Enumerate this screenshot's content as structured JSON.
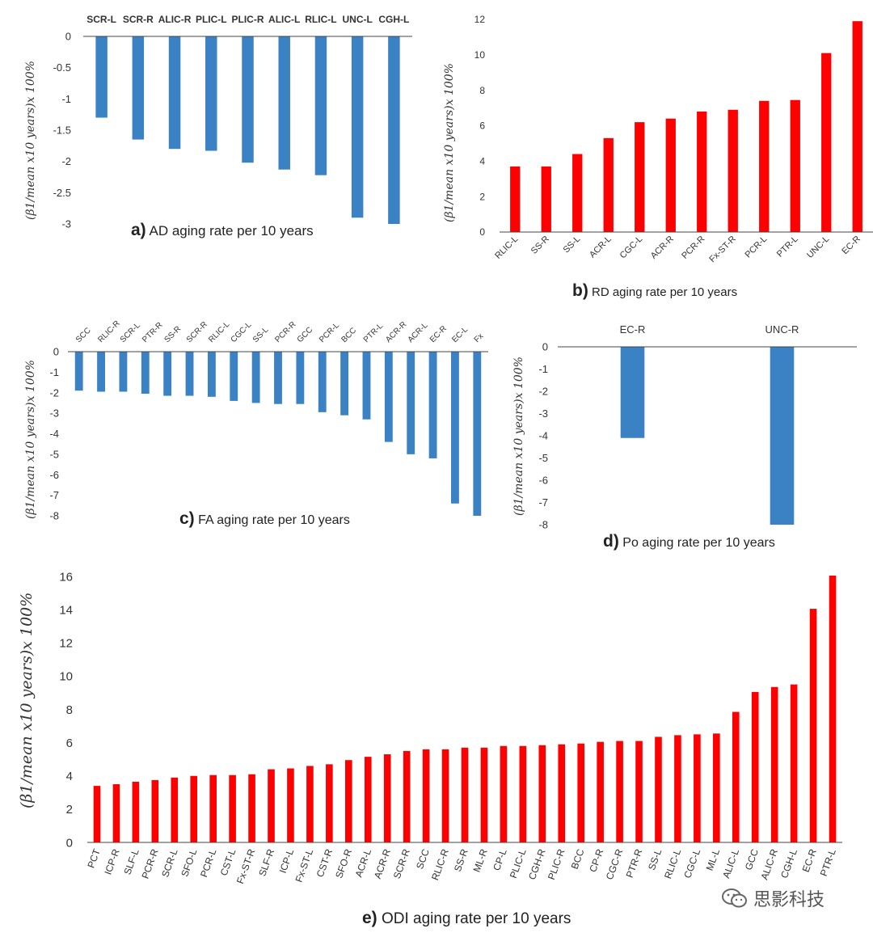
{
  "chart_data": [
    {
      "id": "a",
      "type": "bar",
      "title_letter": "a)",
      "title": "AD aging rate per 10 years",
      "ylabel": "(β1/mean x10 years)x 100%",
      "categories": [
        "SCR-L",
        "SCR-R",
        "ALIC-R",
        "PLIC-L",
        "PLIC-R",
        "ALIC-L",
        "RLIC-L",
        "UNC-L",
        "CGH-L"
      ],
      "values": [
        -1.3,
        -1.65,
        -1.8,
        -1.83,
        -2.02,
        -2.13,
        -2.22,
        -2.9,
        -3.0
      ],
      "ylim": [
        -3,
        0
      ],
      "yticks": [
        0,
        -0.5,
        -1,
        -1.5,
        -2,
        -2.5,
        -3
      ],
      "color": "#3b82c4"
    },
    {
      "id": "b",
      "type": "bar",
      "title_letter": "b)",
      "title": "RD aging rate per 10 years",
      "ylabel": "(β1/mean x10 years)x 100%",
      "categories": [
        "RLIC-L",
        "SS-R",
        "SS-L",
        "ACR-L",
        "CGC-L",
        "ACR-R",
        "PCR-R",
        "Fx-ST-R",
        "PCR-L",
        "PTR-L",
        "UNC-L",
        "EC-R"
      ],
      "values": [
        3.7,
        3.7,
        4.4,
        5.3,
        6.2,
        6.4,
        6.8,
        6.9,
        7.4,
        7.45,
        10.1,
        11.9
      ],
      "ylim": [
        0,
        12
      ],
      "yticks": [
        0,
        2,
        4,
        6,
        8,
        10,
        12
      ],
      "color": "#ff0000"
    },
    {
      "id": "c",
      "type": "bar",
      "title_letter": "c)",
      "title": "FA aging rate per 10 years",
      "ylabel": "(β1/mean x10 years)x 100%",
      "categories": [
        "SCC",
        "RLIC-R",
        "SCR-L",
        "PTR-R",
        "SS-R",
        "SCR-R",
        "RLIC-L",
        "CGC-L",
        "SS-L",
        "PCR-R",
        "GCC",
        "PCR-L",
        "BCC",
        "PTR-L",
        "ACR-R",
        "ACR-L",
        "EC-R",
        "EC-L",
        "Fx"
      ],
      "values": [
        -1.9,
        -1.95,
        -1.95,
        -2.05,
        -2.15,
        -2.15,
        -2.2,
        -2.4,
        -2.5,
        -2.55,
        -2.55,
        -2.95,
        -3.1,
        -3.3,
        -4.4,
        -5.0,
        -5.2,
        -7.4,
        -8.0
      ],
      "ylim": [
        -8,
        0
      ],
      "yticks": [
        0,
        -1,
        -2,
        -3,
        -4,
        -5,
        -6,
        -7,
        -8
      ],
      "color": "#3b82c4"
    },
    {
      "id": "d",
      "type": "bar",
      "title_letter": "d)",
      "title": "Po aging rate per 10 years",
      "ylabel": "(β1/mean x10 years)x 100%",
      "categories": [
        "EC-R",
        "UNC-R"
      ],
      "values": [
        -4.1,
        -8.0
      ],
      "ylim": [
        -8,
        0
      ],
      "yticks": [
        0,
        -1,
        -2,
        -3,
        -4,
        -5,
        -6,
        -7,
        -8
      ],
      "color": "#3b82c4"
    },
    {
      "id": "e",
      "type": "bar",
      "title_letter": "e)",
      "title": "ODI aging rate per 10 years",
      "ylabel": "(β1/mean x10 years)x 100%",
      "categories": [
        "PCT",
        "ICP-R",
        "SLF-L",
        "PCR-R",
        "SCR-L",
        "SFO-L",
        "PCR-L",
        "CST-L",
        "Fx-ST-R",
        "SLF-R",
        "ICP-L",
        "Fx-ST-L",
        "CST-R",
        "SFO-R",
        "ACR-L",
        "ACR-R",
        "SCR-R",
        "SCC",
        "RLIC-R",
        "SS-R",
        "ML-R",
        "CP-L",
        "PLIC-L",
        "CGH-R",
        "PLIC-R",
        "BCC",
        "CP-R",
        "CGC-R",
        "PTR-R",
        "SS-L",
        "RLIC-L",
        "CGC-L",
        "ML-L",
        "ALIC-L",
        "GCC",
        "ALIC-R",
        "CGH-L",
        "EC-R",
        "PTR-L"
      ],
      "values": [
        3.4,
        3.5,
        3.65,
        3.75,
        3.9,
        4.0,
        4.05,
        4.05,
        4.1,
        4.4,
        4.45,
        4.6,
        4.7,
        4.95,
        5.15,
        5.3,
        5.5,
        5.6,
        5.6,
        5.7,
        5.7,
        5.8,
        5.8,
        5.85,
        5.9,
        5.95,
        6.05,
        6.1,
        6.1,
        6.35,
        6.45,
        6.5,
        6.55,
        7.85,
        9.05,
        9.35,
        9.5,
        14.05,
        16.05
      ],
      "ylim": [
        0,
        16
      ],
      "yticks": [
        0,
        2,
        4,
        6,
        8,
        10,
        12,
        14,
        16
      ],
      "color": "#ff0000"
    }
  ],
  "watermark": {
    "text": "思影科技",
    "icon": "wechat-icon"
  }
}
